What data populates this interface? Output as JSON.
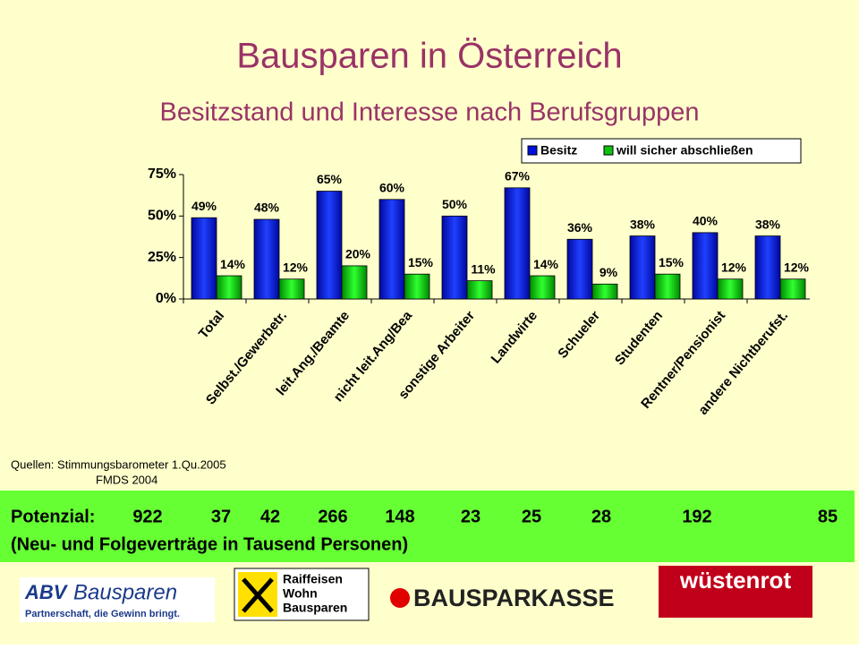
{
  "chart_data": {
    "type": "bar",
    "title": "Bausparen in Österreich",
    "subtitle": "Besitzstand und Interesse nach Berufsgruppen",
    "categories": [
      "Total",
      "Selbst./Gewerbetr.",
      "leit.Ang./Beamte",
      "nicht leit.Ang/Bea",
      "sonstige Arbeiter",
      "Landwirte",
      "Schueler",
      "Studenten",
      "Rentner/Pensionist",
      "andere Nichtberufst."
    ],
    "series": [
      {
        "name": "Besitz",
        "color": "#0010e0",
        "values": [
          49,
          48,
          65,
          60,
          50,
          67,
          36,
          38,
          40,
          38
        ],
        "value_labels": [
          "49%",
          "48%",
          "65%",
          "60%",
          "50%",
          "67%",
          "36%",
          "38%",
          "40%",
          "38%"
        ]
      },
      {
        "name": "will sicher abschließen",
        "color": "#10c010",
        "values": [
          14,
          12,
          20,
          15,
          11,
          14,
          9,
          15,
          12,
          12
        ],
        "value_labels": [
          "14%",
          "12%",
          "20%",
          "15%",
          "11%",
          "14%",
          "9%",
          "15%",
          "12%",
          "12%"
        ]
      }
    ],
    "ylim": [
      0,
      75
    ],
    "yticks": [
      {
        "value": 0,
        "label": "0%"
      },
      {
        "value": 25,
        "label": "25%"
      },
      {
        "value": 50,
        "label": "50%"
      },
      {
        "value": 75,
        "label": "75%"
      }
    ],
    "legend": "top-right"
  },
  "sources": [
    "Quellen: Stimmungsbarometer 1.Qu.2005",
    "FMDS 2004"
  ],
  "potenzial": {
    "label": "Potenzial:",
    "values": [
      922,
      37,
      42,
      266,
      148,
      23,
      25,
      28,
      192,
      85
    ],
    "note": "(Neu- und Folgeverträge in Tausend Personen)"
  },
  "logos": {
    "abv": "ABV",
    "abv_name": "Bausparen",
    "abv_claim": "Partnerschaft, die Gewinn bringt.",
    "raiffeisen": [
      "Raiffeisen",
      "Wohn",
      "Bausparen"
    ],
    "sparkasse": "BAUSPARKASSE",
    "wuestenrot": "wüstenrot"
  }
}
